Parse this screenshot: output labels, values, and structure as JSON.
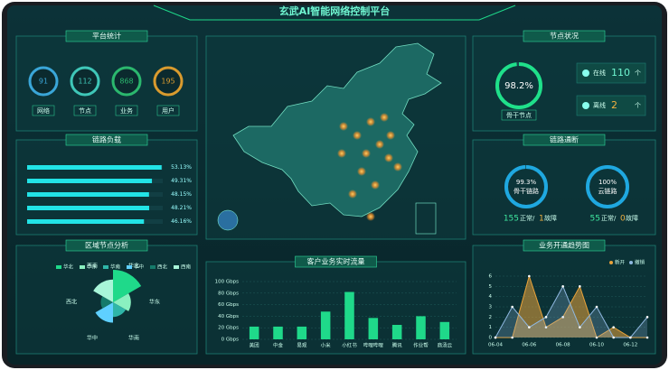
{
  "header": {
    "title": "玄武AI智能网络控制平台"
  },
  "platform_stats": {
    "title": "平台统计",
    "items": [
      {
        "label": "网络",
        "value": 91,
        "color": "#3aa6d8"
      },
      {
        "label": "节点",
        "value": 112,
        "color": "#3fc7b8"
      },
      {
        "label": "业务",
        "value": 868,
        "color": "#2bb86e"
      },
      {
        "label": "用户",
        "value": 195,
        "color": "#d99b2e"
      }
    ]
  },
  "link_load": {
    "title": "链路负载",
    "values": [
      53.13,
      49.31,
      48.15,
      48.21,
      46.16
    ],
    "value_labels": [
      "53.13%",
      "49.31%",
      "48.15%",
      "48.21%",
      "46.16%"
    ],
    "color": "#22e3e6"
  },
  "region_nodes": {
    "title": "区域节点分析",
    "categories": [
      "华北",
      "华东",
      "华南",
      "华中",
      "西北",
      "西南"
    ],
    "values": [
      40,
      22,
      18,
      25,
      15,
      28
    ],
    "colors": [
      "#1fd98a",
      "#8af0c0",
      "#2fb6a8",
      "#5fd0ff",
      "#157a6a",
      "#a8f5d8"
    ]
  },
  "node_status": {
    "title": "节点状况",
    "gauge": {
      "value": 98.2,
      "label": "98.2%",
      "caption": "骨干节点"
    },
    "online": {
      "label": "在线",
      "value": 110,
      "unit": "个"
    },
    "offline": {
      "label": "离线",
      "value": 2,
      "unit": "个"
    }
  },
  "link_status": {
    "title": "链路通断",
    "normal_label": "正常/",
    "fault_label": "故障",
    "items": [
      {
        "value": 99.3,
        "label": "99.3%",
        "caption": "骨干链路",
        "normal": 155,
        "fault": 1
      },
      {
        "value": 100,
        "label": "100%",
        "caption": "云链路",
        "normal": 55,
        "fault": 0
      }
    ]
  },
  "chart_data": [
    {
      "type": "bar",
      "title": "客户业务实时流量",
      "categories": [
        "美团",
        "中金",
        "易观",
        "小米",
        "小红书",
        "哔哩哔哩",
        "腾讯",
        "作业帮",
        "商汤云"
      ],
      "values": [
        22,
        22,
        22,
        48,
        82,
        37,
        25,
        40,
        30
      ],
      "color": "#1fd98a",
      "ylim": [
        0,
        100
      ],
      "yticks": [
        {
          "value": 0,
          "label": "0 Gbps"
        },
        {
          "value": 20,
          "label": "20 Gbps"
        },
        {
          "value": 40,
          "label": "40 Gbps"
        },
        {
          "value": 60,
          "label": "60 Gbps"
        },
        {
          "value": 80,
          "label": "80 Gbps"
        },
        {
          "value": 100,
          "label": "100 Gbps"
        }
      ]
    },
    {
      "type": "line",
      "title": "业务开通趋势图",
      "categories": [
        "06-04",
        null,
        "06-06",
        null,
        "06-08",
        null,
        "06-10",
        null,
        "06-12",
        null
      ],
      "series": [
        {
          "name": "新开",
          "color": "#e8a23a",
          "values": [
            0,
            0,
            6,
            1,
            2,
            5,
            0,
            1,
            0,
            0
          ]
        },
        {
          "name": "撤销",
          "color": "#8fb8e0",
          "values": [
            0,
            3,
            1,
            2,
            5,
            1,
            3,
            0,
            0,
            2
          ]
        }
      ],
      "ylim": [
        0,
        6
      ],
      "yticks": [
        0,
        1,
        2,
        3,
        4,
        5,
        6
      ],
      "grid": true
    }
  ]
}
